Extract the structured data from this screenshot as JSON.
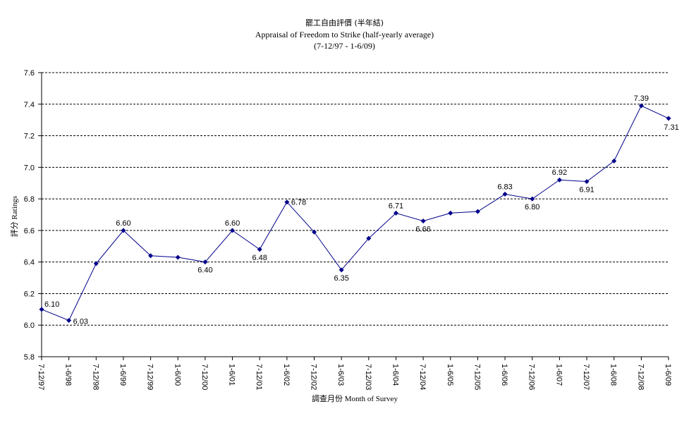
{
  "chart_data": {
    "type": "line",
    "title": "罷工自由評價 (半年結)",
    "subtitle": "Appraisal of Freedom to Strike (half-yearly average)",
    "period": "(7-12/97 - 1-6/09)",
    "xlabel": "調查月份 Month of Survey",
    "ylabel": "評分 Ratings",
    "ylim": [
      5.8,
      7.6
    ],
    "yticks": [
      "5.8",
      "6.0",
      "6.2",
      "6.4",
      "6.6",
      "6.8",
      "7.0",
      "7.2",
      "7.4",
      "7.6"
    ],
    "grid": true,
    "legend": "none",
    "color": "#00008b",
    "categories": [
      "7-12/97",
      "1-6/98",
      "7-12/98",
      "1-6/99",
      "7-12/99",
      "1-6/00",
      "7-12/00",
      "1-6/01",
      "7-12/01",
      "1-6/02",
      "7-12/02",
      "1-6/03",
      "7-12/03",
      "1-6/04",
      "7-12/04",
      "1-6/05",
      "7-12/05",
      "1-6/06",
      "7-12/06",
      "1-6/07",
      "7-12/07",
      "1-6/08",
      "7-12/08",
      "1-6/09"
    ],
    "values": [
      6.1,
      6.03,
      6.39,
      6.6,
      6.44,
      6.43,
      6.4,
      6.6,
      6.48,
      6.78,
      6.59,
      6.35,
      6.55,
      6.71,
      6.66,
      6.71,
      6.72,
      6.83,
      6.8,
      6.92,
      6.91,
      7.04,
      7.39,
      7.31
    ],
    "data_labels": [
      {
        "index": 0,
        "text": "6.10"
      },
      {
        "index": 1,
        "text": "6.03"
      },
      {
        "index": 3,
        "text": "6.60"
      },
      {
        "index": 6,
        "text": "6.40"
      },
      {
        "index": 7,
        "text": "6.60"
      },
      {
        "index": 8,
        "text": "6.48"
      },
      {
        "index": 9,
        "text": "6.78"
      },
      {
        "index": 11,
        "text": "6.35"
      },
      {
        "index": 13,
        "text": "6.71"
      },
      {
        "index": 14,
        "text": "6.66"
      },
      {
        "index": 17,
        "text": "6.83"
      },
      {
        "index": 18,
        "text": "6.80"
      },
      {
        "index": 19,
        "text": "6.92"
      },
      {
        "index": 20,
        "text": "6.91"
      },
      {
        "index": 22,
        "text": "7.39"
      },
      {
        "index": 23,
        "text": "7.31"
      }
    ]
  }
}
